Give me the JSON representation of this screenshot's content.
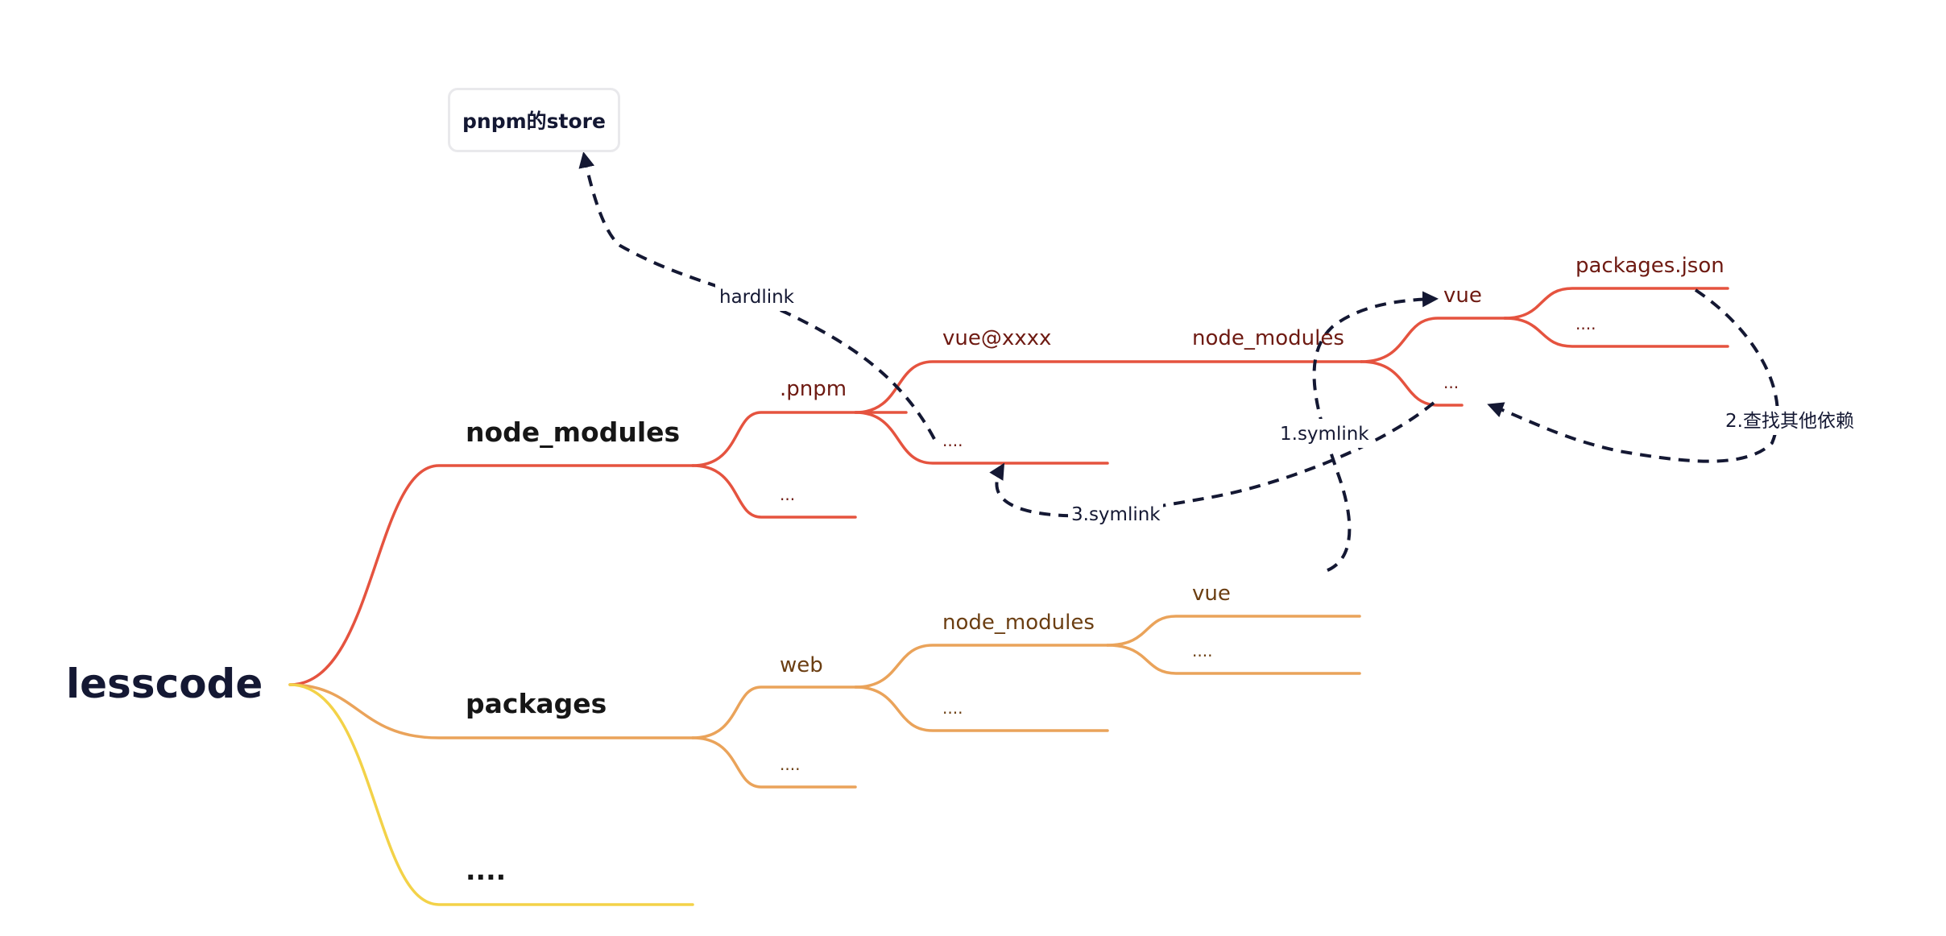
{
  "root": {
    "label": "lesscode"
  },
  "colors": {
    "red": "#e5533f",
    "orange": "#eaa35a",
    "yellow": "#f3d248",
    "link": "#141833"
  },
  "store": {
    "label": "pnpm的store"
  },
  "nodes": {
    "node_modules": "node_modules",
    "packages": "packages",
    "root_more": "....",
    "pnpm": ".pnpm",
    "nm_more": "...",
    "vue_xxxx": "vue@xxxx",
    "pnpm_more": "....",
    "inner_node_modules": "node_modules",
    "inner_vue": "vue",
    "inner_more": "...",
    "packages_json": "packages.json",
    "vue_more": "....",
    "web": "web",
    "packages_more": "....",
    "web_node_modules": "node_modules",
    "web_more": "....",
    "web_vue": "vue",
    "web_nm_more": "...."
  },
  "links": {
    "hardlink": "hardlink",
    "symlink1": "1.symlink",
    "find_deps": "2.查找其他依赖",
    "symlink3": "3.symlink"
  }
}
